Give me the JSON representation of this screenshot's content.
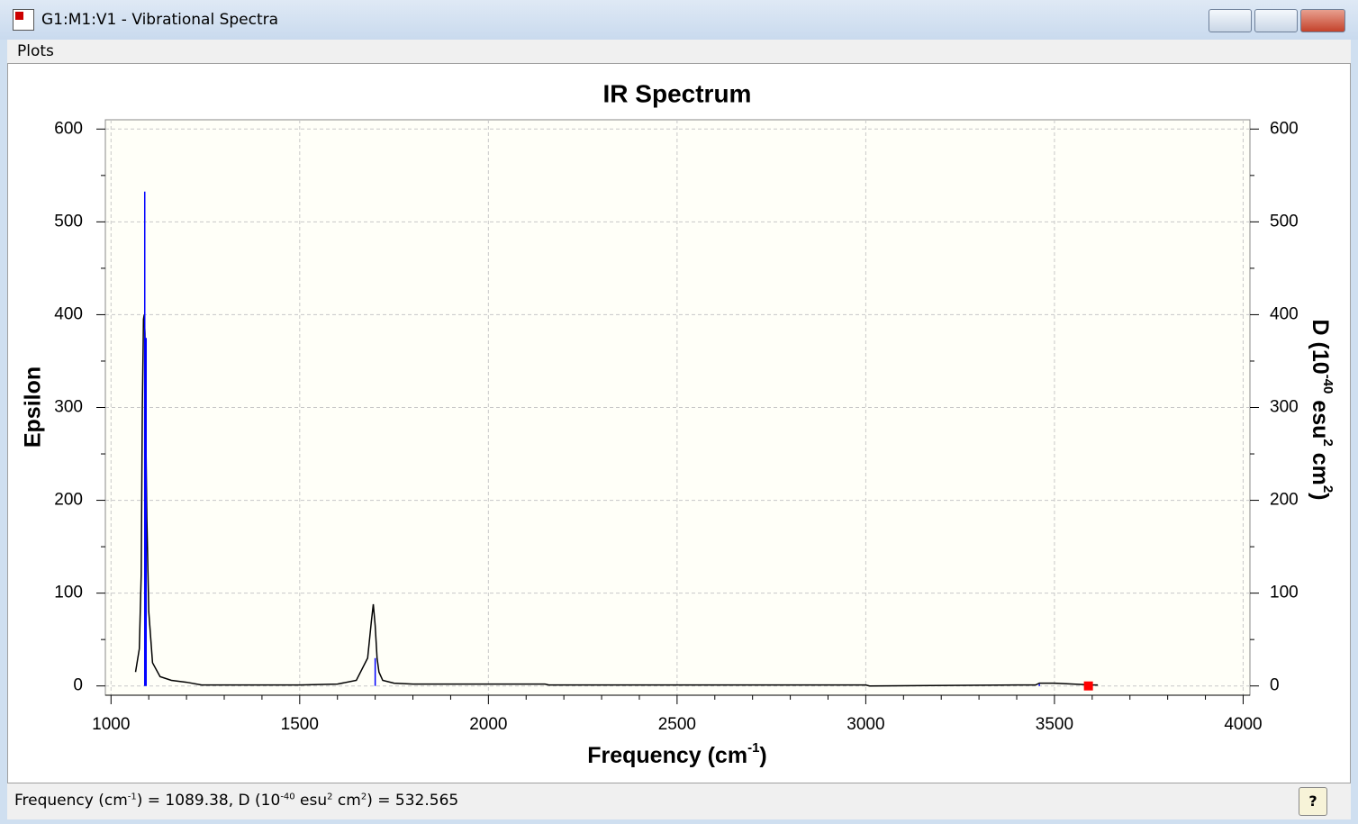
{
  "window": {
    "title": "G1:M1:V1 - Vibrational Spectra",
    "menu": [
      "Plots"
    ],
    "status": [
      "Frequency (cm",
      "-1",
      ") = 1089.38, D (10",
      "-40",
      " esu",
      "2",
      " cm",
      "2",
      ") = 532.565"
    ]
  },
  "chart_data": {
    "type": "line",
    "title": "IR Spectrum",
    "x_label": [
      "Frequency (cm",
      "-1",
      ")"
    ],
    "y_label": "Epsilon",
    "y2_label": [
      "D (10",
      "-40",
      " esu",
      "2",
      " cm",
      "2",
      ")"
    ],
    "xlim": [
      985,
      4018
    ],
    "xticks": [
      1000,
      1500,
      2000,
      2500,
      3000,
      3500,
      4000
    ],
    "xminorticks": [
      1100,
      1200,
      1300,
      1400,
      1600,
      1700,
      1800,
      1900,
      2100,
      2200,
      2300,
      2400,
      2600,
      2700,
      2800,
      2900,
      3100,
      3200,
      3300,
      3400,
      3600,
      3700,
      3800,
      3900
    ],
    "ylim": [
      -10,
      610
    ],
    "yticks": [
      0,
      100,
      200,
      300,
      400,
      500,
      600
    ],
    "yminorticks": [
      50,
      150,
      250,
      350,
      450,
      550
    ],
    "y2lim": [
      -10,
      610
    ],
    "y2ticks": [
      0,
      100,
      200,
      300,
      400,
      500,
      600
    ],
    "y2minorticks": [
      50,
      150,
      250,
      350,
      450,
      550
    ],
    "grid": true,
    "background": "#fffff8",
    "series": [
      {
        "type": "line",
        "color": "#000000",
        "x": [
          1065,
          1075,
          1080,
          1083,
          1086,
          1088,
          1090,
          1092,
          1095,
          1100,
          1110,
          1130,
          1160,
          1200,
          1240,
          1300,
          1400,
          1500,
          1600,
          1650,
          1680,
          1690,
          1695,
          1700,
          1705,
          1710,
          1720,
          1750,
          1800,
          1900,
          2000,
          2100,
          2150,
          2160,
          2500,
          3000,
          3010,
          3400,
          3450,
          3460,
          3480,
          3500,
          3550,
          3600,
          3615
        ],
        "values": [
          15,
          40,
          120,
          300,
          395,
          400,
          380,
          280,
          180,
          80,
          25,
          10,
          6,
          4,
          1,
          1,
          1,
          1,
          2,
          6,
          30,
          70,
          88,
          65,
          30,
          15,
          6,
          3,
          2,
          2,
          2,
          2,
          2,
          1,
          1,
          1,
          0,
          1,
          1,
          3,
          3,
          3,
          2,
          1,
          1
        ]
      },
      {
        "type": "stick",
        "axis": "y2",
        "color": "#0000ff",
        "x": [
          1089.38,
          1093,
          1700,
          3460
        ],
        "values": [
          532.565,
          375,
          30,
          2
        ]
      },
      {
        "type": "marker",
        "color": "#ff0000",
        "x": [
          3590
        ],
        "values": [
          0
        ]
      }
    ]
  }
}
